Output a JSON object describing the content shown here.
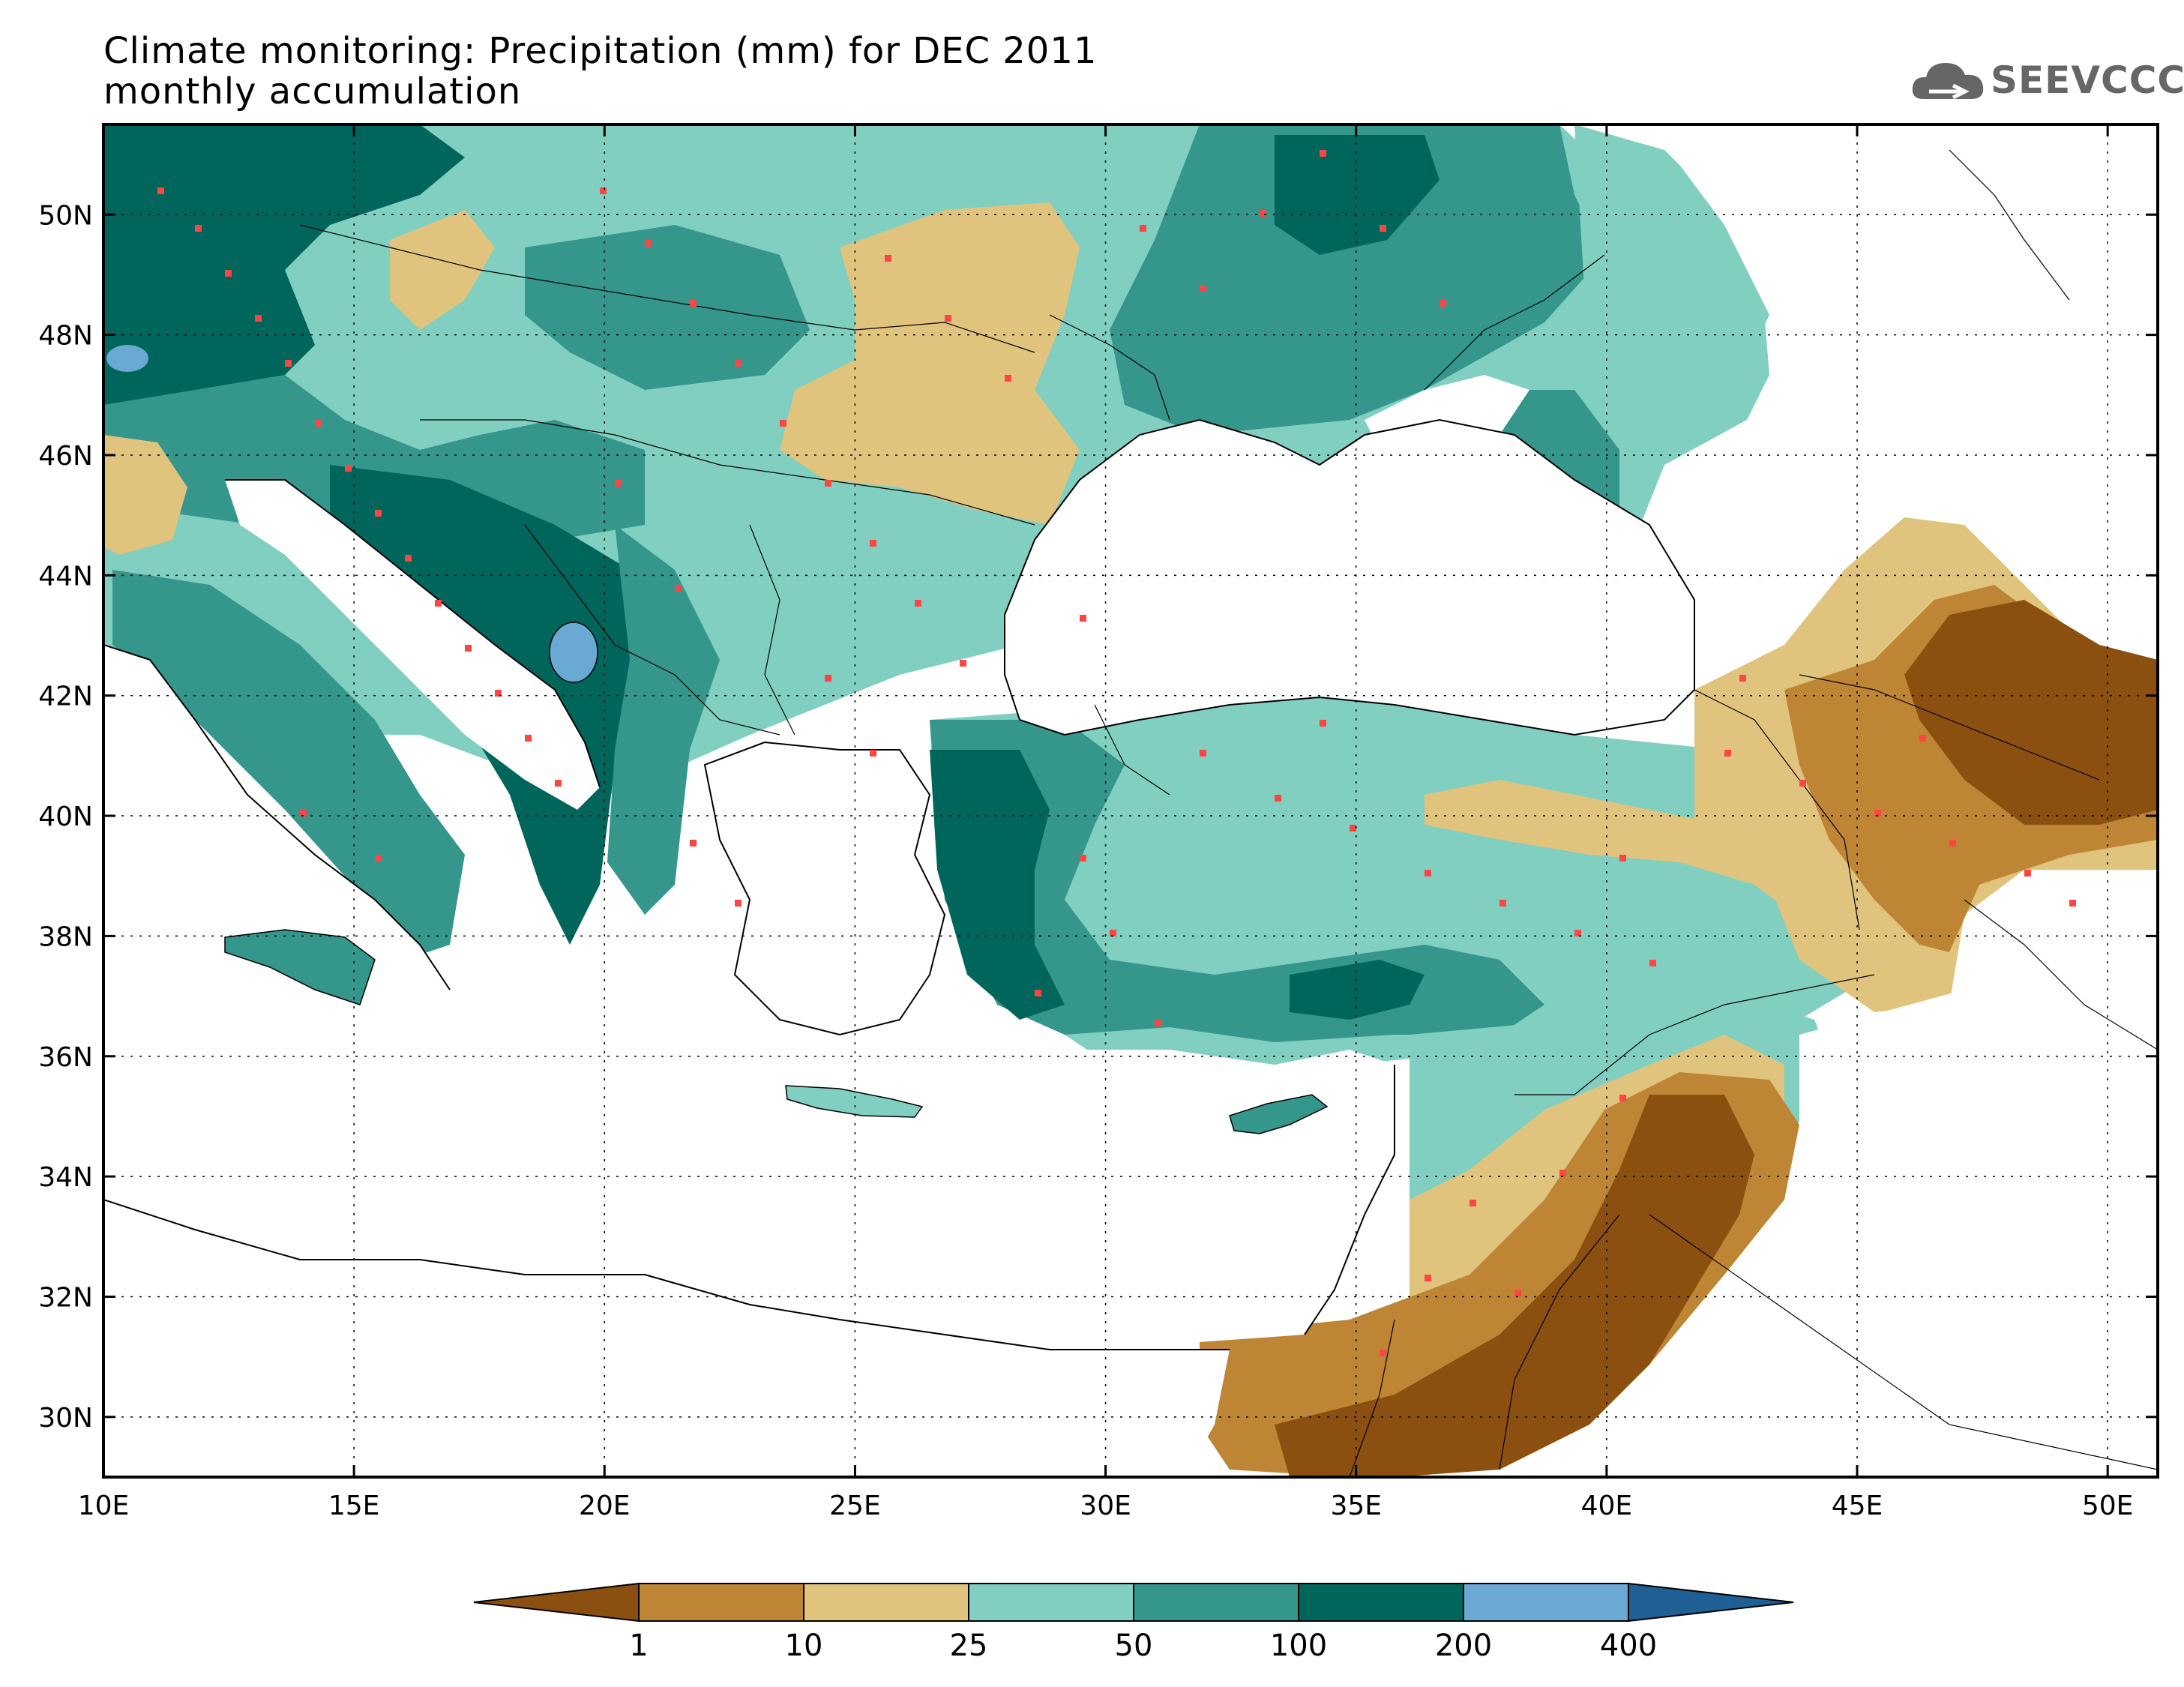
{
  "title": "Climate monitoring: Precipitation (mm) for DEC 2011",
  "subtitle": "monthly accumulation",
  "logo": {
    "text": "SEEVCCC",
    "icon": "cloud-icon"
  },
  "map": {
    "lon_range": [
      10,
      51
    ],
    "lat_range": [
      29,
      51.5
    ],
    "lon_ticks": [
      10,
      15,
      20,
      25,
      30,
      35,
      40,
      45,
      50
    ],
    "lat_ticks": [
      30,
      32,
      34,
      36,
      38,
      40,
      42,
      44,
      46,
      48,
      50
    ],
    "lon_tick_labels": [
      "10E",
      "15E",
      "20E",
      "25E",
      "30E",
      "35E",
      "40E",
      "45E",
      "50E"
    ],
    "lat_tick_labels": [
      "30N",
      "32N",
      "34N",
      "36N",
      "38N",
      "40N",
      "42N",
      "44N",
      "46N",
      "48N",
      "50N"
    ],
    "grid": "dotted"
  },
  "colorbar": {
    "levels": [
      "1",
      "10",
      "25",
      "50",
      "100",
      "200",
      "400"
    ],
    "colors": [
      "#8b5010",
      "#be8535",
      "#e0c47e",
      "#80cfc1",
      "#35968c",
      "#00665c",
      "#6aa9d4",
      "#1e5f95"
    ]
  }
}
